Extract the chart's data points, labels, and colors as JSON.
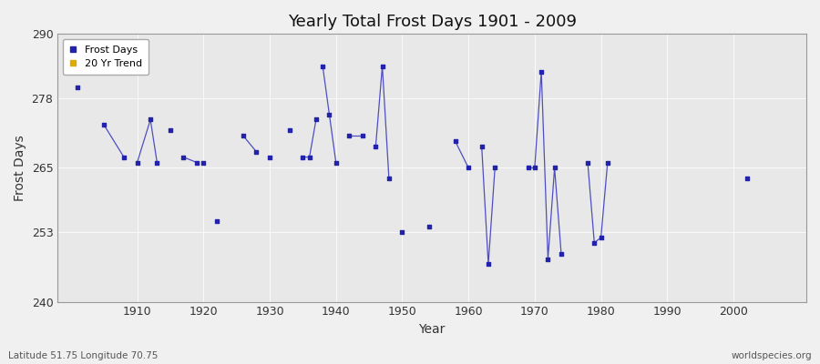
{
  "title": "Yearly Total Frost Days 1901 - 2009",
  "xlabel": "Year",
  "ylabel": "Frost Days",
  "subtitle_lat": "Latitude 51.75 Longitude 70.75",
  "watermark": "worldspecies.org",
  "ylim": [
    240,
    290
  ],
  "xlim": [
    1898,
    2011
  ],
  "yticks": [
    240,
    253,
    265,
    278,
    290
  ],
  "xticks": [
    1910,
    1920,
    1930,
    1940,
    1950,
    1960,
    1970,
    1980,
    1990,
    2000
  ],
  "bg_color": "#f0f0f0",
  "plot_bg": "#e8e8e8",
  "line_color": "#3333bb",
  "marker_color": "#2222aa",
  "segments": [
    {
      "years": [
        1901
      ],
      "values": [
        280
      ]
    },
    {
      "years": [
        1905,
        1908
      ],
      "values": [
        273,
        267
      ]
    },
    {
      "years": [
        1910,
        1912,
        1913
      ],
      "values": [
        266,
        274,
        266
      ]
    },
    {
      "years": [
        1915
      ],
      "values": [
        272
      ]
    },
    {
      "years": [
        1917,
        1919
      ],
      "values": [
        267,
        266
      ]
    },
    {
      "years": [
        1920
      ],
      "values": [
        266
      ]
    },
    {
      "years": [
        1922
      ],
      "values": [
        255
      ]
    },
    {
      "years": [
        1926,
        1928
      ],
      "values": [
        271,
        268
      ]
    },
    {
      "years": [
        1930
      ],
      "values": [
        267
      ]
    },
    {
      "years": [
        1933
      ],
      "values": [
        272
      ]
    },
    {
      "years": [
        1935,
        1936,
        1937
      ],
      "values": [
        267,
        267,
        274
      ]
    },
    {
      "years": [
        1938,
        1939,
        1940
      ],
      "values": [
        284,
        275,
        266
      ]
    },
    {
      "years": [
        1942,
        1944
      ],
      "values": [
        271,
        271
      ]
    },
    {
      "years": [
        1946,
        1947,
        1948
      ],
      "values": [
        269,
        284,
        263
      ]
    },
    {
      "years": [
        1950
      ],
      "values": [
        253
      ]
    },
    {
      "years": [
        1954
      ],
      "values": [
        254
      ]
    },
    {
      "years": [
        1958,
        1960
      ],
      "values": [
        270,
        265
      ]
    },
    {
      "years": [
        1962,
        1963,
        1964
      ],
      "values": [
        269,
        247,
        265
      ]
    },
    {
      "years": [
        1969,
        1970,
        1971,
        1972,
        1973,
        1974
      ],
      "values": [
        265,
        265,
        283,
        248,
        265,
        249
      ]
    },
    {
      "years": [
        1978,
        1979,
        1980,
        1981
      ],
      "values": [
        266,
        251,
        252,
        266
      ]
    },
    {
      "years": [
        2002
      ],
      "values": [
        263
      ]
    }
  ]
}
